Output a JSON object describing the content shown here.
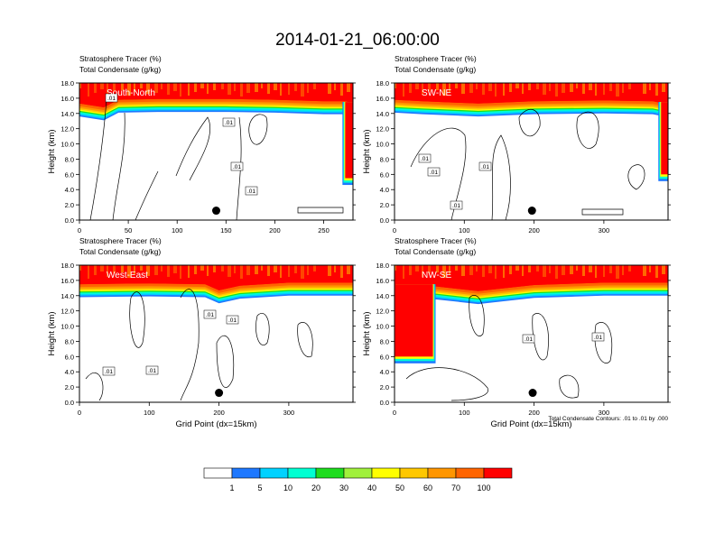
{
  "title": "2014-01-21_06:00:00",
  "colorbar": {
    "labels": [
      "1",
      "5",
      "10",
      "20",
      "30",
      "40",
      "50",
      "60",
      "70",
      "100"
    ],
    "colors": [
      "#ffffff",
      "#1e78ff",
      "#00d2ff",
      "#00ffd2",
      "#1edc1e",
      "#a0f03c",
      "#ffff00",
      "#ffc800",
      "#ff9600",
      "#ff6400",
      "#ff0000"
    ]
  },
  "panels": [
    {
      "subtitle1": "Stratosphere Tracer   (%)",
      "subtitle2": "Total Condensate   (g/kg)",
      "section_label": "South-North",
      "ylabel": "Height (km)",
      "yticks": [
        "0.0",
        "2.0",
        "4.0",
        "6.0",
        "8.0",
        "10.0",
        "12.0",
        "14.0",
        "16.0",
        "18.0"
      ],
      "xmax": 280,
      "xticks": [
        0,
        50,
        100,
        150,
        200,
        250
      ],
      "xtick_labels": [
        "0",
        "50",
        "100",
        "150",
        "200",
        "250"
      ],
      "contour_labels": [
        ".01",
        ".01",
        ".01",
        ".01"
      ],
      "xlabel": "",
      "footnote": ""
    },
    {
      "subtitle1": "Stratosphere Tracer   (%)",
      "subtitle2": "Total Condensate   (g/kg)",
      "section_label": "SW-NE",
      "ylabel": "Height (km)",
      "yticks": [
        "0.0",
        "2.0",
        "4.0",
        "6.0",
        "8.0",
        "10.0",
        "12.0",
        "14.0",
        "16.0",
        "18.0"
      ],
      "xmax": 392,
      "xticks": [
        0,
        100,
        200,
        300
      ],
      "xtick_labels": [
        "0",
        "100",
        "200",
        "300"
      ],
      "contour_labels": [
        ".01",
        ".01",
        ".01",
        ".01"
      ],
      "xlabel": "",
      "footnote": ""
    },
    {
      "subtitle1": "Stratosphere Tracer   (%)",
      "subtitle2": "Total Condensate   (g/kg)",
      "section_label": "West-East",
      "ylabel": "Height (km)",
      "yticks": [
        "0.0",
        "2.0",
        "4.0",
        "6.0",
        "8.0",
        "10.0",
        "12.0",
        "14.0",
        "16.0",
        "18.0"
      ],
      "xmax": 392,
      "xticks": [
        0,
        100,
        200,
        300
      ],
      "xtick_labels": [
        "0",
        "100",
        "200",
        "300"
      ],
      "contour_labels": [
        ".01",
        ".01",
        ".01",
        ".01"
      ],
      "xlabel": "Grid Point (dx=15km)",
      "footnote": ""
    },
    {
      "subtitle1": "Stratosphere Tracer   (%)",
      "subtitle2": "Total Condensate   (g/kg)",
      "section_label": "NW-SE",
      "ylabel": "Height (km)",
      "yticks": [
        "0.0",
        "2.0",
        "4.0",
        "6.0",
        "8.0",
        "10.0",
        "12.0",
        "14.0",
        "16.0",
        "18.0"
      ],
      "xmax": 392,
      "xticks": [
        0,
        100,
        200,
        300
      ],
      "xtick_labels": [
        "0",
        "100",
        "200",
        "300"
      ],
      "contour_labels": [
        ".01",
        ".01"
      ],
      "xlabel": "Grid Point (dx=15km)",
      "footnote": "Total Condensate Contours: .01 to .01 by .000"
    }
  ],
  "chart_data": [
    {
      "type": "heatmap",
      "section": "South-North",
      "x_range": [
        0,
        280
      ],
      "y_range_km": [
        0,
        18
      ],
      "xticks": [
        0,
        50,
        100,
        150,
        200,
        250
      ],
      "yticks_km": [
        0,
        2,
        4,
        6,
        8,
        10,
        12,
        14,
        16,
        18
      ],
      "tropopause_km": [
        {
          "x": 0,
          "y": 15.3
        },
        {
          "x": 25,
          "y": 14.8
        },
        {
          "x": 40,
          "y": 15.8
        },
        {
          "x": 80,
          "y": 15.9
        },
        {
          "x": 150,
          "y": 15.9
        },
        {
          "x": 200,
          "y": 15.8
        },
        {
          "x": 250,
          "y": 15.6
        },
        {
          "x": 272,
          "y": 15.6
        },
        {
          "x": 280,
          "y": 15.4
        }
      ],
      "edge_intrusion": {
        "side": "right",
        "x_from": 272,
        "y_bottom_km": 5.5
      },
      "marker": {
        "x": 140,
        "y_km": 1.0
      }
    },
    {
      "type": "heatmap",
      "section": "SW-NE",
      "x_range": [
        0,
        392
      ],
      "y_range_km": [
        0,
        18
      ],
      "xticks": [
        0,
        100,
        200,
        300
      ],
      "yticks_km": [
        0,
        2,
        4,
        6,
        8,
        10,
        12,
        14,
        16,
        18
      ],
      "tropopause_km": [
        {
          "x": 0,
          "y": 15.8
        },
        {
          "x": 40,
          "y": 15.6
        },
        {
          "x": 120,
          "y": 15.3
        },
        {
          "x": 200,
          "y": 15.6
        },
        {
          "x": 300,
          "y": 15.7
        },
        {
          "x": 370,
          "y": 15.6
        },
        {
          "x": 392,
          "y": 15.2
        }
      ],
      "edge_intrusion": {
        "side": "right",
        "x_from": 382,
        "y_bottom_km": 6.0
      },
      "marker": {
        "x": 197,
        "y_km": 1.0
      }
    },
    {
      "type": "heatmap",
      "section": "West-East",
      "x_range": [
        0,
        392
      ],
      "y_range_km": [
        0,
        18
      ],
      "xticks": [
        0,
        100,
        200,
        300
      ],
      "yticks_km": [
        0,
        2,
        4,
        6,
        8,
        10,
        12,
        14,
        16,
        18
      ],
      "tropopause_km": [
        {
          "x": 0,
          "y": 15.5
        },
        {
          "x": 100,
          "y": 15.6
        },
        {
          "x": 180,
          "y": 15.5
        },
        {
          "x": 200,
          "y": 14.7
        },
        {
          "x": 230,
          "y": 15.3
        },
        {
          "x": 300,
          "y": 15.7
        },
        {
          "x": 392,
          "y": 15.7
        }
      ],
      "edge_intrusion": null,
      "marker": {
        "x": 200,
        "y_km": 1.0
      }
    },
    {
      "type": "heatmap",
      "section": "NW-SE",
      "x_range": [
        0,
        392
      ],
      "y_range_km": [
        0,
        18
      ],
      "xticks": [
        0,
        100,
        200,
        300
      ],
      "yticks_km": [
        0,
        2,
        4,
        6,
        8,
        10,
        12,
        14,
        16,
        18
      ],
      "tropopause_km": [
        {
          "x": 0,
          "y": 15.5
        },
        {
          "x": 60,
          "y": 15.2
        },
        {
          "x": 120,
          "y": 14.6
        },
        {
          "x": 200,
          "y": 15.4
        },
        {
          "x": 300,
          "y": 15.7
        },
        {
          "x": 392,
          "y": 15.7
        }
      ],
      "edge_intrusion": {
        "side": "left",
        "x_from": 0,
        "x_to": 55,
        "y_bottom_km": 6.0
      },
      "marker": {
        "x": 198,
        "y_km": 1.0
      }
    }
  ]
}
